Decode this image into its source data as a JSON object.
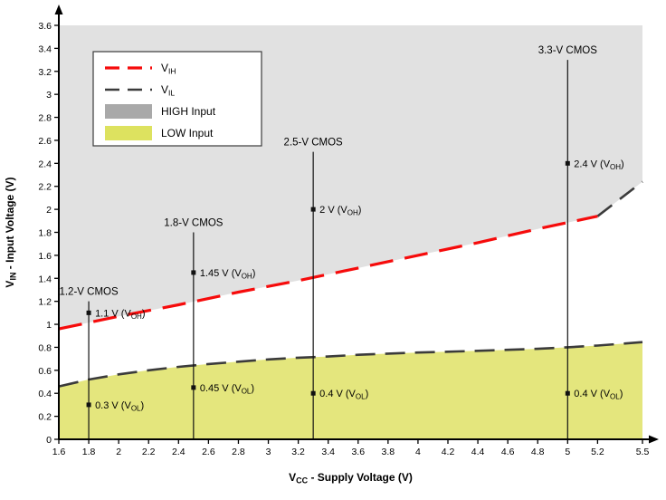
{
  "chart_data": {
    "type": "line",
    "title": "",
    "xlabel": {
      "prefix": "V",
      "sub": "CC",
      "rest": " - Supply Voltage (V)"
    },
    "ylabel": {
      "prefix": "V",
      "sub": "IN",
      "rest": " - Input Voltage (V)"
    },
    "x_range": [
      1.6,
      5.5
    ],
    "y_range": [
      0,
      3.6
    ],
    "grid": false,
    "x_tick_labels": [
      "1.6",
      "1.8",
      "2",
      "2.2",
      "2.4",
      "2.6",
      "2.8",
      "3",
      "3.2",
      "3.4",
      "3.6",
      "3.8",
      "4",
      "4.2",
      "4.4",
      "4.6",
      "4.8",
      "5",
      "5.2",
      "5.5"
    ],
    "y_tick_labels": [
      "0",
      "0.2",
      "0.4",
      "0.6",
      "0.8",
      "1",
      "1.2",
      "1.4",
      "1.6",
      "1.8",
      "2",
      "2.2",
      "2.4",
      "2.6",
      "2.8",
      "3",
      "3.2",
      "3.4",
      "3.6"
    ],
    "colors": {
      "vih": "#f60b0b",
      "vil": "#3b3b3b",
      "high_region": "#e1e1e1",
      "low_region": "#e4e67d",
      "legend_high_swatch": "#a9a9a9",
      "legend_low_swatch": "#dde25f",
      "axis": "#000000",
      "annotation": "#111111"
    },
    "series": [
      {
        "name": "VIH",
        "color": "#f60b0b",
        "style": "dashed",
        "points": [
          [
            1.6,
            0.96
          ],
          [
            2.0,
            1.07
          ],
          [
            2.4,
            1.17
          ],
          [
            2.8,
            1.28
          ],
          [
            3.2,
            1.38
          ],
          [
            3.6,
            1.49
          ],
          [
            4.0,
            1.6
          ],
          [
            4.4,
            1.71
          ],
          [
            4.8,
            1.83
          ],
          [
            5.2,
            1.94
          ]
        ]
      },
      {
        "name": "VIL",
        "color": "#3b3b3b",
        "style": "dashed",
        "points": [
          [
            1.6,
            0.46
          ],
          [
            1.8,
            0.52
          ],
          [
            2.0,
            0.565
          ],
          [
            2.2,
            0.6
          ],
          [
            2.4,
            0.63
          ],
          [
            2.6,
            0.655
          ],
          [
            2.8,
            0.675
          ],
          [
            3.0,
            0.695
          ],
          [
            3.2,
            0.71
          ],
          [
            3.4,
            0.72
          ],
          [
            3.6,
            0.735
          ],
          [
            3.8,
            0.745
          ],
          [
            4.0,
            0.755
          ],
          [
            4.2,
            0.762
          ],
          [
            4.4,
            0.77
          ],
          [
            4.6,
            0.778
          ],
          [
            4.8,
            0.787
          ],
          [
            5.0,
            0.8
          ],
          [
            5.2,
            0.815
          ],
          [
            5.5,
            0.845
          ]
        ]
      },
      {
        "name": "high-boundary-extension",
        "color": "#3b3b3b",
        "style": "dashed",
        "points": [
          [
            5.2,
            1.94
          ],
          [
            5.5,
            2.24
          ]
        ]
      }
    ],
    "regions": [
      {
        "name": "HIGH Input",
        "fill": "#e1e1e1",
        "boundary_series": [
          "VIH",
          "high-boundary-extension"
        ],
        "side": "above"
      },
      {
        "name": "LOW Input",
        "fill": "#e4e67d",
        "boundary_series": [
          "VIL"
        ],
        "side": "below"
      }
    ],
    "legend": {
      "position": "top-left",
      "entries": [
        {
          "label": "V",
          "sub": "IH",
          "swatch": "dashed-line",
          "color": "#f60b0b"
        },
        {
          "label": "V",
          "sub": "IL",
          "swatch": "dashed-line",
          "color": "#3b3b3b"
        },
        {
          "label": "HIGH Input",
          "sub": "",
          "swatch": "fill",
          "color": "#a9a9a9"
        },
        {
          "label": "LOW Input",
          "sub": "",
          "swatch": "fill",
          "color": "#dde25f"
        }
      ]
    },
    "annotations": [
      {
        "label": "1.2-V CMOS",
        "x": 1.8,
        "line_top": 1.2,
        "markers": [
          {
            "y": 1.1,
            "text": "1.1 V",
            "sub": "OH"
          },
          {
            "y": 0.3,
            "text": "0.3 V",
            "sub": "OL"
          }
        ]
      },
      {
        "label": "1.8-V CMOS",
        "x": 2.5,
        "line_top": 1.8,
        "markers": [
          {
            "y": 1.45,
            "text": "1.45 V",
            "sub": "OH"
          },
          {
            "y": 0.45,
            "text": "0.45 V",
            "sub": "OL"
          }
        ]
      },
      {
        "label": "2.5-V CMOS",
        "x": 3.3,
        "line_top": 2.5,
        "markers": [
          {
            "y": 2.0,
            "text": "2 V",
            "sub": "OH"
          },
          {
            "y": 0.4,
            "text": "0.4 V",
            "sub": "OL"
          }
        ]
      },
      {
        "label": "3.3-V CMOS",
        "x": 5.0,
        "line_top": 3.3,
        "markers": [
          {
            "y": 2.4,
            "text": "2.4 V",
            "sub": "OH"
          },
          {
            "y": 0.4,
            "text": "0.4 V",
            "sub": "OL"
          }
        ]
      }
    ]
  }
}
